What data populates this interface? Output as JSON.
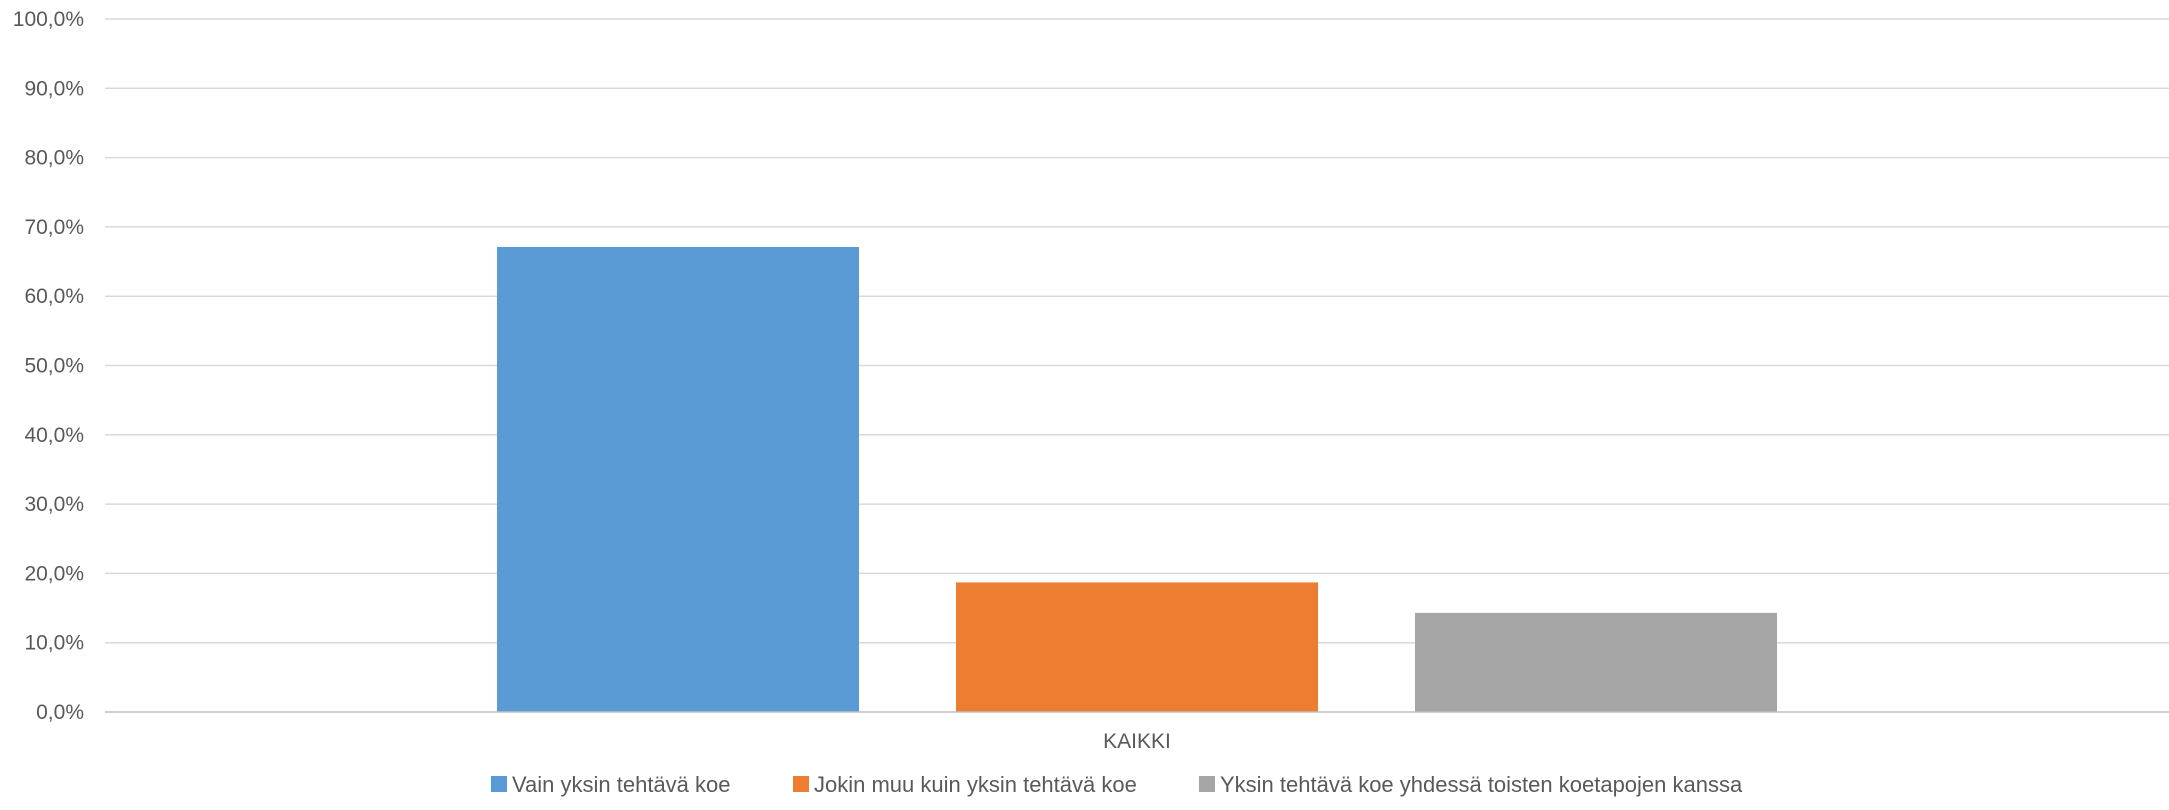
{
  "chart_data": {
    "type": "bar",
    "categories": [
      "KAIKKI"
    ],
    "series": [
      {
        "name": "Vain yksin tehtävä koe",
        "values": [
          67.1
        ],
        "color": "#5b9bd5"
      },
      {
        "name": "Jokin muu kuin yksin tehtävä koe",
        "values": [
          18.7
        ],
        "color": "#ed7d31"
      },
      {
        "name": "Yksin tehtävä koe yhdessä toisten koetapojen kanssa",
        "values": [
          14.3
        ],
        "color": "#a5a5a5"
      }
    ],
    "y_ticks": [
      "0,0%",
      "10,0%",
      "20,0%",
      "30,0%",
      "40,0%",
      "50,0%",
      "60,0%",
      "70,0%",
      "80,0%",
      "90,0%",
      "100,0%"
    ],
    "ylim": [
      0,
      100
    ],
    "grid": true,
    "legend_position": "bottom"
  }
}
